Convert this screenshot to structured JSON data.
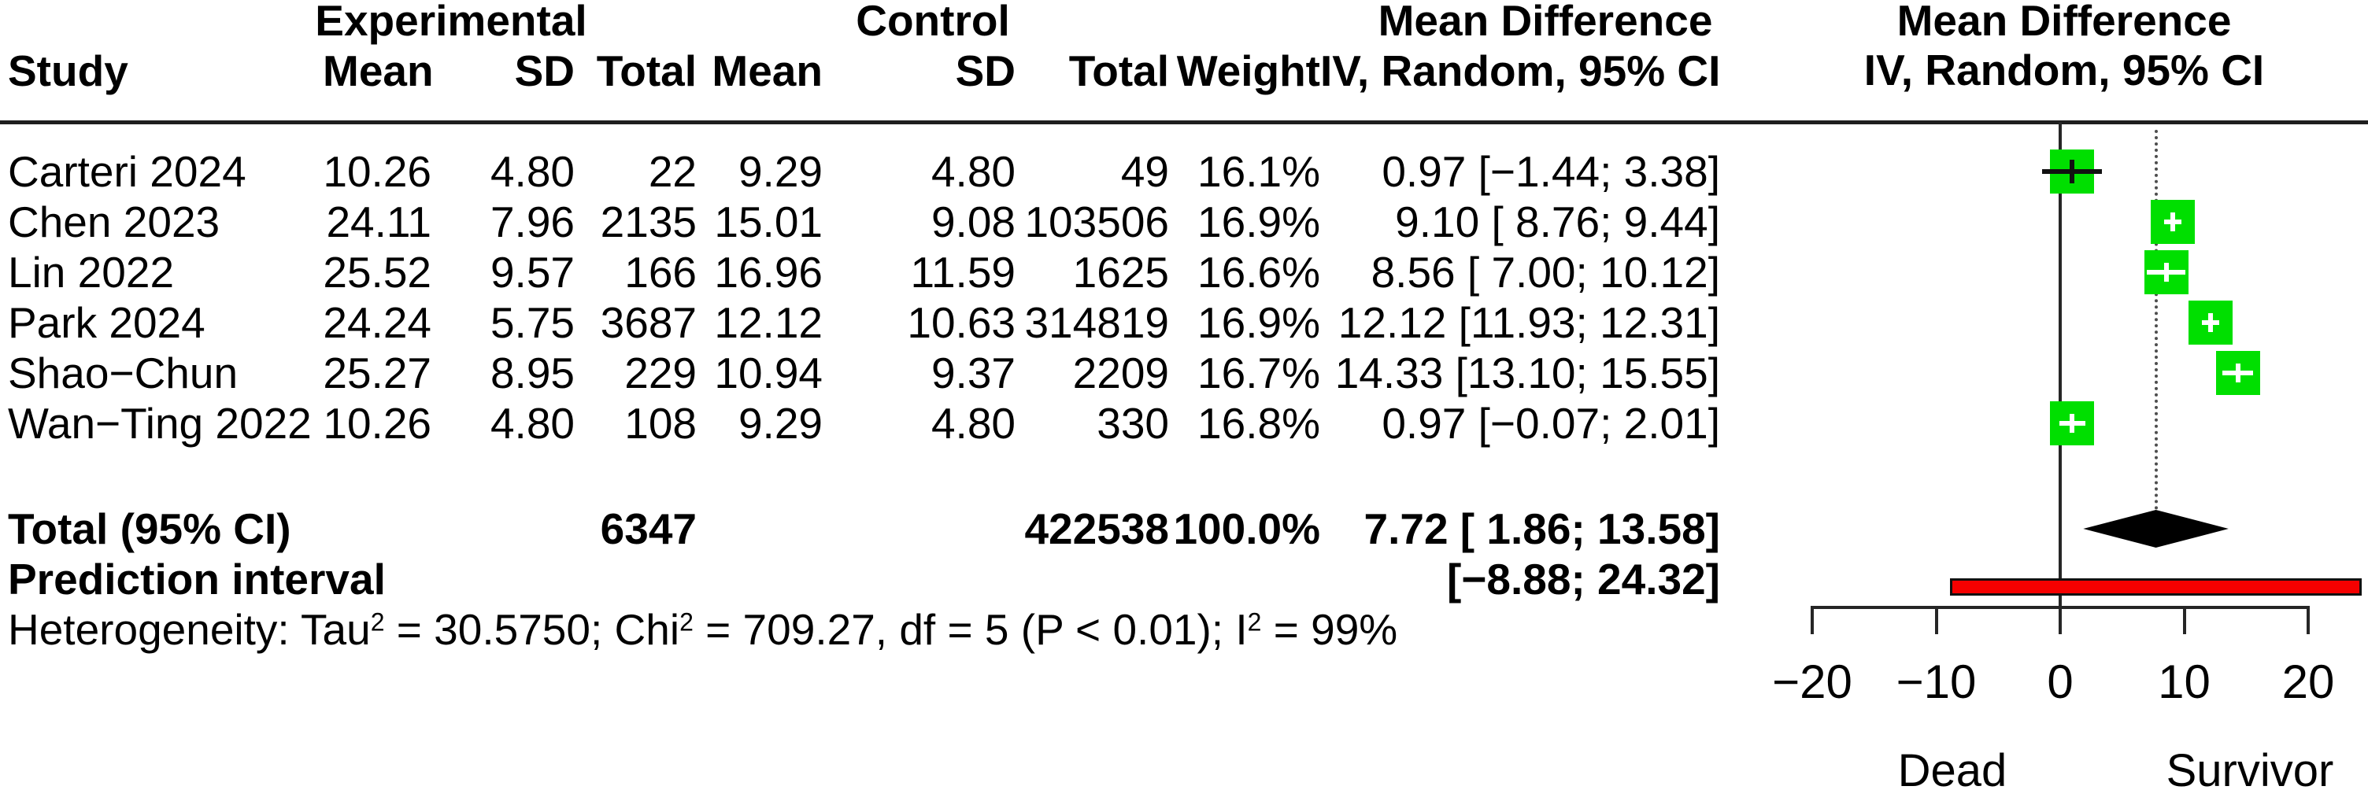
{
  "header": {
    "experimental": "Experimental",
    "control": "Control",
    "md_left": "Mean Difference",
    "md_right_line1": "Mean Difference",
    "md_right_line2": "IV, Random, 95% CI"
  },
  "table": {
    "columns": [
      "Study",
      "Mean",
      "SD",
      "Total",
      "Mean",
      "SD",
      "Total",
      "Weight",
      "IV, Random, 95% CI"
    ]
  },
  "chart_data": {
    "type": "forest",
    "effect_measure": "Mean Difference",
    "model": "IV, Random, 95% CI",
    "studies": [
      {
        "label": "Carteri 2024",
        "mean_e": "10.26",
        "sd_e": "4.80",
        "n_e": "22",
        "mean_c": "9.29",
        "sd_c": "4.80",
        "n_c": "49",
        "weight": "16.1%",
        "md": 0.97,
        "lo": -1.44,
        "hi": 3.38,
        "md_ci": "0.97 [−1.44; 3.38]"
      },
      {
        "label": "Chen 2023",
        "mean_e": "24.11",
        "sd_e": "7.96",
        "n_e": "2135",
        "mean_c": "15.01",
        "sd_c": "9.08",
        "n_c": "103506",
        "weight": "16.9%",
        "md": 9.1,
        "lo": 8.76,
        "hi": 9.44,
        "md_ci": "9.10 [ 8.76; 9.44]"
      },
      {
        "label": "Lin 2022",
        "mean_e": "25.52",
        "sd_e": "9.57",
        "n_e": "166",
        "mean_c": "16.96",
        "sd_c": "11.59",
        "n_c": "1625",
        "weight": "16.6%",
        "md": 8.56,
        "lo": 7.0,
        "hi": 10.12,
        "md_ci": "8.56 [ 7.00; 10.12]"
      },
      {
        "label": "Park 2024",
        "mean_e": "24.24",
        "sd_e": "5.75",
        "n_e": "3687",
        "mean_c": "12.12",
        "sd_c": "10.63",
        "n_c": "314819",
        "weight": "16.9%",
        "md": 12.12,
        "lo": 11.93,
        "hi": 12.31,
        "md_ci": "12.12 [11.93; 12.31]"
      },
      {
        "label": "Shao−Chun",
        "mean_e": "25.27",
        "sd_e": "8.95",
        "n_e": "229",
        "mean_c": "10.94",
        "sd_c": "9.37",
        "n_c": "2209",
        "weight": "16.7%",
        "md": 14.33,
        "lo": 13.1,
        "hi": 15.55,
        "md_ci": "14.33 [13.10; 15.55]"
      },
      {
        "label": "Wan−Ting 2022",
        "mean_e": "10.26",
        "sd_e": "4.80",
        "n_e": "108",
        "mean_c": "9.29",
        "sd_c": "4.80",
        "n_c": "330",
        "weight": "16.8%",
        "md": 0.97,
        "lo": -0.07,
        "hi": 2.01,
        "md_ci": "0.97 [−0.07; 2.01]"
      }
    ],
    "total": {
      "label": "Total (95% CI)",
      "n_e": "6347",
      "n_c": "422538",
      "weight": "100.0%",
      "md": 7.72,
      "lo": 1.86,
      "hi": 13.58,
      "md_ci": "7.72 [ 1.86; 13.58]"
    },
    "prediction": {
      "label": "Prediction interval",
      "lo": -8.88,
      "hi": 24.32,
      "ci": "[−8.88; 24.32]"
    },
    "heterogeneity_parts": [
      {
        "t": "Heterogeneity: Tau",
        "sup": false
      },
      {
        "t": "2",
        "sup": true
      },
      {
        "t": " = 30.5750; Chi",
        "sup": false
      },
      {
        "t": "2",
        "sup": true
      },
      {
        "t": " = 709.27, df = 5 (P < 0.01); I",
        "sup": false
      },
      {
        "t": "2",
        "sup": true
      },
      {
        "t": " = 99%",
        "sup": false
      }
    ],
    "axis": {
      "xmin": -20,
      "xmax": 20,
      "ticks": [
        -20,
        -10,
        0,
        10,
        20
      ],
      "tick_labels": [
        "−20",
        "−10",
        "0",
        "10",
        "20"
      ],
      "label_left": {
        "text": "Dead",
        "x": -8.7
      },
      "label_right": {
        "text": "Survivor",
        "x": 15.3
      }
    },
    "colors": {
      "square": "#00DF00",
      "diamond": "#000000",
      "prediction_bar": "#F60000",
      "line": "#262626",
      "text": "#000000"
    }
  }
}
